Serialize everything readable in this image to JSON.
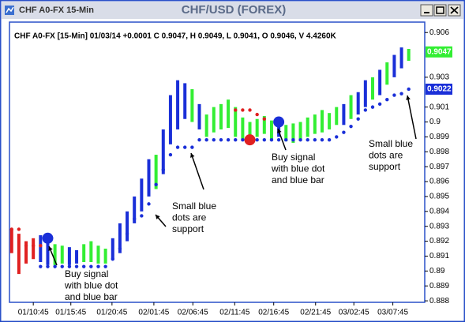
{
  "window_title": "CHF A0-FX 15-Min",
  "chart_data": {
    "type": "ohlc",
    "title": "CHF/USD (FOREX)",
    "info": "CHF A0-FX [15-Min] 01/03/14 +0.0001 C 0.9047, H 0.9049, L 0.9041, O 0.9046, V 4.4260K",
    "xlim": [
      -0.3,
      57
    ],
    "xticks": [
      {
        "value": 3.0,
        "label": "01/10:45"
      },
      {
        "value": 8.2,
        "label": "01/15:45"
      },
      {
        "value": 13.9,
        "label": "01/20:45"
      },
      {
        "value": 19.7,
        "label": "02/01:45"
      },
      {
        "value": 25.1,
        "label": "02/06:45"
      },
      {
        "value": 30.9,
        "label": "02/11:45"
      },
      {
        "value": 36.3,
        "label": "02/16:45"
      },
      {
        "value": 42.1,
        "label": "02/21:45"
      },
      {
        "value": 47.4,
        "label": "03/02:45"
      },
      {
        "value": 52.8,
        "label": "03/07:45"
      }
    ],
    "ylim": [
      0.8879,
      0.9067
    ],
    "yticks": [
      0.888,
      0.889,
      0.89,
      0.891,
      0.892,
      0.893,
      0.894,
      0.895,
      0.896,
      0.897,
      0.898,
      0.899,
      0.9,
      0.901,
      0.903,
      0.906
    ],
    "high": [
      0.8928,
      0.8925,
      0.892,
      0.8922,
      0.8924,
      0.8923,
      0.8918,
      0.8917,
      0.8916,
      0.8914,
      0.8918,
      0.892,
      0.8917,
      0.8915,
      0.8922,
      0.8932,
      0.894,
      0.895,
      0.8962,
      0.8975,
      0.8978,
      0.8995,
      0.9018,
      0.9028,
      0.9026,
      0.9022,
      0.9012,
      0.9005,
      0.901,
      0.9012,
      0.9015,
      0.901,
      0.9003,
      0.9,
      0.9002,
      0.9004,
      0.9001,
      0.9003,
      0.8998,
      0.8999,
      0.9,
      0.9003,
      0.9005,
      0.9008,
      0.9006,
      0.901,
      0.9012,
      0.9018,
      0.902,
      0.9028,
      0.903,
      0.9035,
      0.904,
      0.9045,
      0.905,
      0.9049
    ],
    "low": [
      0.8912,
      0.8898,
      0.8905,
      0.8908,
      0.8906,
      0.8904,
      0.8904,
      0.8905,
      0.8904,
      0.8905,
      0.8906,
      0.8906,
      0.8905,
      0.8905,
      0.8908,
      0.8912,
      0.892,
      0.8932,
      0.894,
      0.895,
      0.8955,
      0.8965,
      0.8985,
      0.8995,
      0.9002,
      0.9,
      0.8995,
      0.899,
      0.8993,
      0.8995,
      0.8996,
      0.899,
      0.8988,
      0.8986,
      0.899,
      0.8992,
      0.8988,
      0.899,
      0.8987,
      0.8986,
      0.8988,
      0.899,
      0.8992,
      0.8993,
      0.8995,
      0.8998,
      0.8998,
      0.9002,
      0.9005,
      0.901,
      0.9015,
      0.9018,
      0.9025,
      0.903,
      0.9036,
      0.9041
    ],
    "bar_colors": [
      "#e02020",
      "#e02020",
      "#e02020",
      "#e02020",
      "#1a2fd8",
      "#1a2fd8",
      "#33ee33",
      "#33ee33",
      "#1a2fd8",
      "#1a2fd8",
      "#33ee33",
      "#33ee33",
      "#33ee33",
      "#33ee33",
      "#1a2fd8",
      "#1a2fd8",
      "#1a2fd8",
      "#1a2fd8",
      "#1a2fd8",
      "#1a2fd8",
      "#33ee33",
      "#1a2fd8",
      "#1a2fd8",
      "#1a2fd8",
      "#1a2fd8",
      "#33ee33",
      "#1a2fd8",
      "#33ee33",
      "#33ee33",
      "#33ee33",
      "#33ee33",
      "#33ee33",
      "#33ee33",
      "#33ee33",
      "#33ee33",
      "#33ee33",
      "#33ee33",
      "#1a2fd8",
      "#33ee33",
      "#33ee33",
      "#33ee33",
      "#33ee33",
      "#33ee33",
      "#33ee33",
      "#33ee33",
      "#33ee33",
      "#1a2fd8",
      "#33ee33",
      "#1a2fd8",
      "#1a2fd8",
      "#33ee33",
      "#1a2fd8",
      "#33ee33",
      "#1a2fd8",
      "#1a2fd8",
      "#33ee33"
    ],
    "dot_series": [
      {
        "color": "#1a2fd8",
        "values": [
          null,
          null,
          null,
          null,
          0.8903,
          0.8903,
          0.8903,
          0.8903,
          0.8903,
          0.8903,
          0.8903,
          0.8903,
          0.8903,
          0.8903,
          0.8908,
          0.8915,
          0.8925,
          0.8935,
          0.8937,
          0.8945,
          0.8958,
          0.8968,
          0.8978,
          0.8983,
          0.8983,
          0.8983,
          0.8988,
          0.8988,
          0.8988,
          0.8988,
          0.8988,
          0.8988,
          0.8988,
          0.8988,
          0.8988,
          0.8988,
          0.8988,
          0.8988,
          0.8988,
          0.8988,
          0.8988,
          0.8988,
          0.8988,
          0.8988,
          0.8988,
          0.899,
          0.8993,
          0.8997,
          0.9002,
          0.9008,
          0.901,
          0.9012,
          0.9015,
          0.9018,
          0.9019,
          0.9022
        ]
      },
      {
        "color": "#e02020",
        "values": [
          0.8928,
          0.8928,
          0.8917,
          0.8917,
          0.8917,
          null,
          null,
          null,
          null,
          null,
          null,
          null,
          null,
          null,
          null,
          null,
          null,
          null,
          null,
          null,
          null,
          null,
          null,
          null,
          null,
          null,
          null,
          null,
          null,
          null,
          null,
          0.9008,
          0.9008,
          0.9008,
          0.9005,
          0.9002,
          null,
          null,
          null,
          null,
          null,
          null,
          null,
          null,
          null,
          null,
          null,
          null,
          null,
          null,
          null,
          null,
          null,
          null,
          null,
          null
        ]
      }
    ],
    "signals": [
      {
        "x": 5,
        "value": 0.8922,
        "color": "#1a2fd8"
      },
      {
        "x": 33,
        "value": 0.8988,
        "color": "#e02020"
      },
      {
        "x": 37,
        "value": 0.9,
        "color": "#1a2fd8"
      }
    ],
    "price_labels": [
      {
        "value": 0.9047,
        "color": "#33ee33"
      },
      {
        "value": 0.9022,
        "color": "#1a2fd8"
      }
    ],
    "annotations": [
      {
        "lines": [
          "Buy signal",
          "with blue dot",
          "and blue bar"
        ]
      },
      {
        "lines": [
          "Small blue",
          "dots are",
          "support"
        ]
      },
      {
        "lines": [
          "Buy signal",
          "with blue dot",
          "and blue bar"
        ]
      },
      {
        "lines": [
          "Small blue",
          "dots are",
          "support"
        ]
      }
    ]
  }
}
